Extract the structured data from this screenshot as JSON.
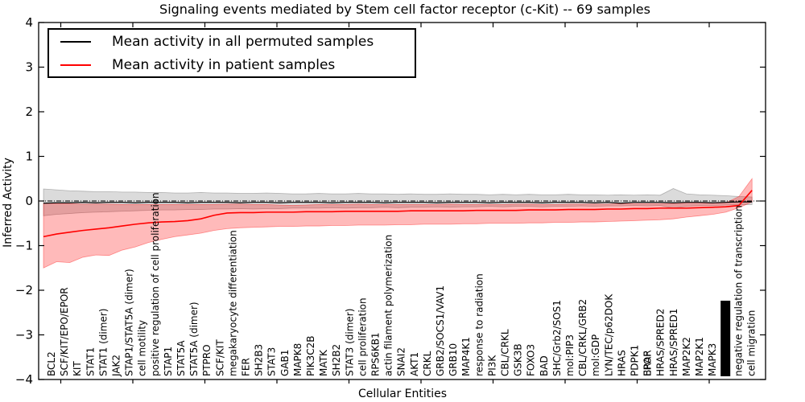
{
  "title": "Signaling events mediated by Stem cell factor receptor (c-Kit) -- 69 samples",
  "legend": {
    "entries": [
      {
        "label": "Mean activity in all permuted samples",
        "color": "#000000"
      },
      {
        "label": "Mean activity in patient samples",
        "color": "#ff0000"
      }
    ]
  },
  "axes": {
    "xlabel": "Cellular Entities",
    "ylabel": "Inferred Activity",
    "ytick_labels": [
      "4",
      "3",
      "2",
      "1",
      "0",
      "−1",
      "−2",
      "−3",
      "−4"
    ],
    "ytick_values": [
      4,
      3,
      2,
      1,
      0,
      -1,
      -2,
      -3,
      -4
    ]
  },
  "colors": {
    "permuted_line": "#000000",
    "patient_line": "#ff0000",
    "permuted_band": "rgba(0,0,0,0.14)",
    "patient_band": "rgba(255,0,0,0.27)"
  },
  "chart_data": {
    "type": "line",
    "title": "Signaling events mediated by Stem cell factor receptor (c-Kit) -- 69 samples",
    "xlabel": "Cellular Entities",
    "ylabel": "Inferred Activity",
    "ylim": [
      -4,
      4
    ],
    "grid": false,
    "legend_position": "upper left",
    "zero_line": {
      "y": 0,
      "style": "dash-dot"
    },
    "categories": [
      "BCL2",
      "SCF/KIT/EPO/EPOR",
      "KIT",
      "STAT1",
      "STAT1 (dimer)",
      "JAK2",
      "STAP1/STAT5A (dimer)",
      "cell motility",
      "positive regulation of cell proliferation",
      "STAP1",
      "STAT5A",
      "STAT5A (dimer)",
      "PTPRO",
      "SCF/KIT",
      "megakaryocyte differentiation",
      "FER",
      "SH2B3",
      "STAT3",
      "GAB1",
      "MAPK8",
      "PIK3C2B",
      "MATK",
      "SH2B2",
      "STAT3 (dimer)",
      "cell proliferation",
      "RPS6KB1",
      "actin filament polymerization",
      "SNAI2",
      "AKT1",
      "CRKL",
      "GRB2/SOCS1/VAV1",
      "GRB10",
      "MAP4K1",
      "response to radiation",
      "PI3K",
      "CBL/CRKL",
      "GSK3B",
      "FOXO3",
      "BAD",
      "SHC/Grb2/SOS1",
      "mol:PIP3",
      "CBL/CRKL/GRB2",
      "mol:GDP",
      "LYN/TEC/p62DOK",
      "HRAS",
      "PDPK1",
      "BRAF",
      "EPOR",
      "HRAS/SPRED2",
      "HRAS/SPRED1",
      "MAP2K2",
      "MAP2K1",
      "MAPK3",
      "negative regulation of transcription",
      "cell migration"
    ],
    "overlapping_pairs": [
      [
        "BRAF",
        "EPOR"
      ]
    ],
    "unreadable_label_cluster": {
      "between": [
        "MAPK3",
        "negative regulation of transcription"
      ]
    },
    "series": [
      {
        "name": "Mean activity in all permuted samples",
        "color": "#000000",
        "band_color": "rgba(0,0,0,0.14)",
        "values": [
          -0.05,
          -0.04,
          -0.04,
          -0.03,
          -0.04,
          -0.03,
          -0.03,
          -0.04,
          -0.03,
          -0.03,
          -0.03,
          -0.04,
          -0.03,
          -0.03,
          -0.03,
          -0.04,
          -0.03,
          -0.03,
          -0.04,
          -0.03,
          -0.03,
          -0.03,
          -0.04,
          -0.03,
          -0.03,
          -0.03,
          -0.04,
          -0.03,
          -0.03,
          -0.03,
          -0.04,
          -0.03,
          -0.03,
          -0.03,
          -0.04,
          -0.03,
          -0.03,
          -0.03,
          -0.04,
          -0.03,
          -0.03,
          -0.03,
          -0.04,
          -0.03,
          -0.05,
          -0.03,
          -0.03,
          -0.03,
          -0.04,
          -0.03,
          -0.03,
          -0.04,
          -0.03,
          -0.02,
          -0.02
        ],
        "band_upper": [
          0.27,
          0.25,
          0.23,
          0.22,
          0.21,
          0.21,
          0.2,
          0.2,
          0.19,
          0.19,
          0.18,
          0.18,
          0.19,
          0.18,
          0.18,
          0.17,
          0.17,
          0.18,
          0.17,
          0.16,
          0.16,
          0.17,
          0.16,
          0.16,
          0.17,
          0.16,
          0.16,
          0.15,
          0.16,
          0.15,
          0.15,
          0.16,
          0.15,
          0.15,
          0.14,
          0.15,
          0.14,
          0.15,
          0.14,
          0.14,
          0.15,
          0.14,
          0.14,
          0.13,
          0.14,
          0.13,
          0.14,
          0.13,
          0.28,
          0.16,
          0.14,
          0.13,
          0.12,
          0.1,
          0.09
        ],
        "band_lower": [
          -0.33,
          -0.3,
          -0.28,
          -0.26,
          -0.25,
          -0.24,
          -0.23,
          -0.22,
          -0.21,
          -0.2,
          -0.2,
          -0.19,
          -0.19,
          -0.18,
          -0.18,
          -0.17,
          -0.18,
          -0.17,
          -0.17,
          -0.16,
          -0.16,
          -0.16,
          -0.15,
          -0.16,
          -0.15,
          -0.15,
          -0.14,
          -0.15,
          -0.14,
          -0.14,
          -0.13,
          -0.14,
          -0.13,
          -0.13,
          -0.12,
          -0.13,
          -0.12,
          -0.12,
          -0.13,
          -0.12,
          -0.12,
          -0.11,
          -0.12,
          -0.11,
          -0.11,
          -0.1,
          -0.11,
          -0.1,
          -0.16,
          -0.12,
          -0.1,
          -0.1,
          -0.09,
          -0.08,
          -0.08
        ]
      },
      {
        "name": "Mean activity in patient samples",
        "color": "#ff0000",
        "band_color": "rgba(255,0,0,0.27)",
        "values": [
          -0.8,
          -0.74,
          -0.7,
          -0.66,
          -0.63,
          -0.6,
          -0.56,
          -0.52,
          -0.49,
          -0.47,
          -0.46,
          -0.44,
          -0.4,
          -0.32,
          -0.27,
          -0.26,
          -0.26,
          -0.25,
          -0.25,
          -0.25,
          -0.24,
          -0.24,
          -0.24,
          -0.23,
          -0.23,
          -0.23,
          -0.23,
          -0.23,
          -0.22,
          -0.22,
          -0.22,
          -0.22,
          -0.22,
          -0.21,
          -0.21,
          -0.21,
          -0.21,
          -0.2,
          -0.2,
          -0.2,
          -0.19,
          -0.19,
          -0.19,
          -0.18,
          -0.18,
          -0.17,
          -0.17,
          -0.16,
          -0.16,
          -0.16,
          -0.15,
          -0.14,
          -0.13,
          -0.1,
          0.24
        ],
        "band_upper": [
          -0.05,
          -0.06,
          -0.06,
          -0.07,
          -0.07,
          -0.07,
          -0.08,
          -0.08,
          -0.08,
          -0.08,
          -0.08,
          -0.08,
          -0.08,
          -0.08,
          -0.07,
          -0.07,
          -0.08,
          -0.08,
          -0.09,
          -0.1,
          -0.09,
          -0.08,
          -0.08,
          -0.08,
          -0.07,
          -0.08,
          -0.08,
          -0.08,
          -0.08,
          -0.08,
          -0.08,
          -0.07,
          -0.08,
          -0.08,
          -0.08,
          -0.08,
          -0.07,
          -0.07,
          -0.08,
          -0.08,
          -0.07,
          -0.07,
          -0.07,
          -0.07,
          -0.06,
          -0.06,
          -0.06,
          -0.06,
          -0.06,
          -0.05,
          -0.05,
          -0.05,
          -0.04,
          0.1,
          0.5
        ],
        "band_lower": [
          -1.5,
          -1.36,
          -1.38,
          -1.26,
          -1.21,
          -1.22,
          -1.1,
          -1.03,
          -0.93,
          -0.86,
          -0.8,
          -0.76,
          -0.72,
          -0.66,
          -0.62,
          -0.6,
          -0.59,
          -0.58,
          -0.57,
          -0.57,
          -0.56,
          -0.56,
          -0.55,
          -0.55,
          -0.54,
          -0.54,
          -0.54,
          -0.53,
          -0.53,
          -0.52,
          -0.52,
          -0.52,
          -0.51,
          -0.51,
          -0.5,
          -0.5,
          -0.5,
          -0.49,
          -0.49,
          -0.48,
          -0.48,
          -0.47,
          -0.47,
          -0.46,
          -0.45,
          -0.44,
          -0.43,
          -0.42,
          -0.4,
          -0.36,
          -0.33,
          -0.3,
          -0.25,
          -0.15,
          -0.02
        ]
      }
    ]
  }
}
